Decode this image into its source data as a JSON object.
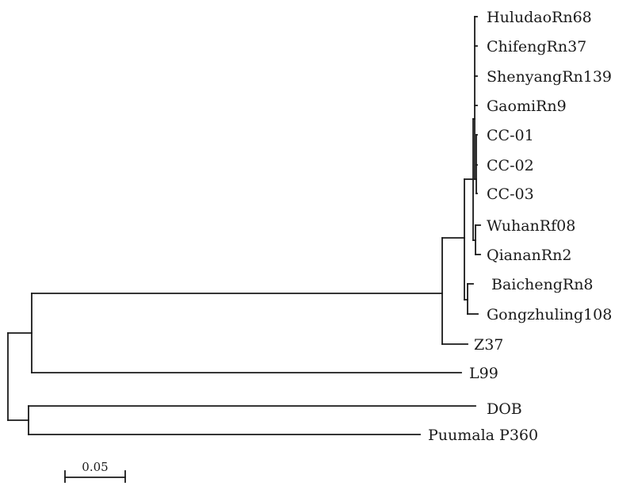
{
  "tree": {
    "leaves": [
      {
        "id": "huludao",
        "label": "HuludaoRn68"
      },
      {
        "id": "chifeng",
        "label": "ChifengRn37"
      },
      {
        "id": "shenyang",
        "label": "ShenyangRn139"
      },
      {
        "id": "gaomi",
        "label": "GaomiRn9"
      },
      {
        "id": "cc01",
        "label": "CC-01"
      },
      {
        "id": "cc02",
        "label": "CC-02"
      },
      {
        "id": "cc03",
        "label": "CC-03"
      },
      {
        "id": "wuhan",
        "label": "WuhanRf08"
      },
      {
        "id": "qianan",
        "label": "QiananRn2"
      },
      {
        "id": "baicheng",
        "label": "BaichengRn8"
      },
      {
        "id": "gongzhuling",
        "label": "Gongzhuling108"
      },
      {
        "id": "z37",
        "label": "Z37"
      },
      {
        "id": "l99",
        "label": "L99"
      },
      {
        "id": "dob",
        "label": "DOB"
      },
      {
        "id": "puumala",
        "label": "Puumala P360"
      }
    ],
    "scale_bar": {
      "label": "0.05",
      "length": 0.05
    }
  }
}
